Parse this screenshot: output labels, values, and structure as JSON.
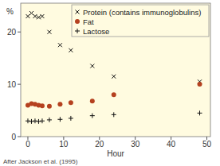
{
  "chart_data": {
    "type": "scatter",
    "x_label": "Hour",
    "y_label": "%",
    "annotation": "After Jackson et al. (1995)",
    "x": [
      0,
      1,
      2,
      3,
      4,
      6,
      9,
      12,
      18,
      24,
      48
    ],
    "series": [
      {
        "name": "Protein (contains immunoglobulins)",
        "color": "#111111",
        "marker": "x",
        "values": [
          23,
          23.6,
          23,
          22.8,
          23,
          20,
          17.5,
          16.5,
          13.5,
          11.5,
          10.5
        ]
      },
      {
        "name": "Fat",
        "color": "#b5411f",
        "marker": "circle",
        "values": [
          6,
          6.3,
          6.2,
          6,
          5.9,
          5.8,
          6.2,
          6.5,
          6.8,
          8,
          10
        ]
      },
      {
        "name": "Lactose",
        "color": "#111111",
        "marker": "+",
        "values": [
          3,
          2.9,
          3,
          2.9,
          3,
          3.2,
          3.3,
          3.5,
          4,
          4.2,
          4.5
        ]
      }
    ],
    "xlim": [
      -2,
      51
    ],
    "xticks": [
      0,
      10,
      20,
      30,
      40,
      50
    ],
    "ylim": [
      0,
      25.5
    ],
    "yticks": [
      0,
      10,
      20
    ],
    "legend": "upper right",
    "grid": false
  }
}
